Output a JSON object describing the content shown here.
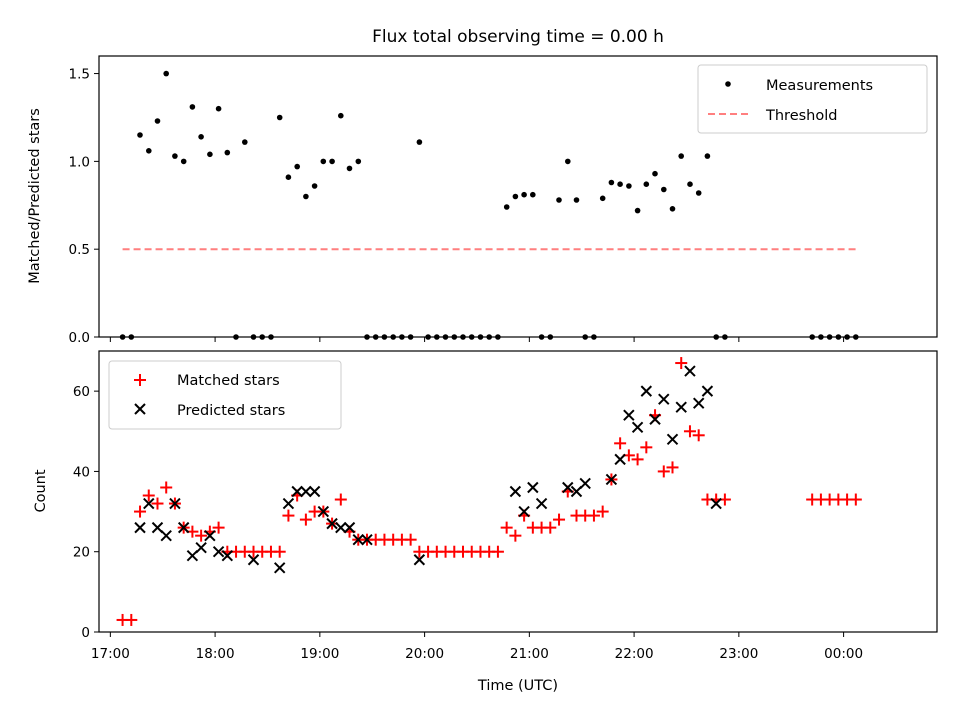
{
  "chart_data": [
    {
      "type": "scatter",
      "title": "Flux total observing time = 0.00 h",
      "xlabel": "",
      "ylabel": "Matched/Predicted stars",
      "ylim": [
        0,
        1.6
      ],
      "yticks": [
        "0.0",
        "0.5",
        "1.0",
        "1.5"
      ],
      "legend": {
        "placement": "top-right",
        "entries": [
          "Measurements",
          "Threshold"
        ]
      },
      "series": [
        {
          "name": "Measurements",
          "marker": "dot",
          "color": "#000000",
          "x": [
            "17:07",
            "17:12",
            "17:17",
            "17:22",
            "17:27",
            "17:32",
            "17:37",
            "17:42",
            "17:47",
            "17:52",
            "17:57",
            "18:02",
            "18:07",
            "18:12",
            "18:17",
            "18:22",
            "18:27",
            "18:32",
            "18:37",
            "18:42",
            "18:47",
            "18:52",
            "18:57",
            "19:02",
            "19:07",
            "19:12",
            "19:17",
            "19:22",
            "19:27",
            "19:32",
            "19:37",
            "19:42",
            "19:47",
            "19:52",
            "19:57",
            "20:02",
            "20:07",
            "20:12",
            "20:17",
            "20:22",
            "20:27",
            "20:32",
            "20:37",
            "20:42",
            "20:47",
            "20:52",
            "20:57",
            "21:02",
            "21:07",
            "21:12",
            "21:17",
            "21:22",
            "21:27",
            "21:32",
            "21:37",
            "21:42",
            "21:47",
            "21:52",
            "21:57",
            "22:02",
            "22:07",
            "22:12",
            "22:17",
            "22:22",
            "22:27",
            "22:32",
            "22:37",
            "22:42",
            "22:47",
            "22:52",
            "23:42",
            "23:47",
            "23:52",
            "23:57",
            "00:02",
            "00:07"
          ],
          "y": [
            0,
            0,
            1.15,
            1.06,
            1.23,
            1.5,
            1.03,
            1.0,
            1.31,
            1.14,
            1.04,
            1.3,
            1.05,
            0,
            1.11,
            0,
            0,
            0,
            1.25,
            0.91,
            0.97,
            0.8,
            0.86,
            1.0,
            1.0,
            1.26,
            0.96,
            1.0,
            0,
            0,
            0,
            0,
            0,
            0,
            1.11,
            0,
            0,
            0,
            0,
            0,
            0,
            0,
            0,
            0,
            0.74,
            0.8,
            0.81,
            0.81,
            0,
            0,
            0.78,
            1.0,
            0.78,
            0,
            0,
            0.79,
            0.88,
            0.87,
            0.86,
            0.72,
            0.87,
            0.93,
            0.84,
            0.73,
            1.03,
            0.87,
            0.82,
            1.03,
            0,
            0,
            0,
            0,
            0,
            0,
            0,
            0
          ]
        },
        {
          "name": "Threshold",
          "style": "dashed",
          "color": "#ff7f7f",
          "x": [
            "17:07",
            "00:07"
          ],
          "y": [
            0.5,
            0.5
          ]
        }
      ]
    },
    {
      "type": "scatter",
      "title": "",
      "xlabel": "Time (UTC)",
      "ylabel": "Count",
      "ylim": [
        0,
        70
      ],
      "yticks": [
        "0",
        "20",
        "40",
        "60"
      ],
      "xticks": [
        "17:00",
        "18:00",
        "19:00",
        "20:00",
        "21:00",
        "22:00",
        "23:00",
        "00:00"
      ],
      "legend": {
        "placement": "top-left",
        "entries": [
          "Matched stars",
          "Predicted stars"
        ]
      },
      "series": [
        {
          "name": "Matched stars",
          "marker": "plus",
          "color": "#ff0000",
          "x": [
            "17:07",
            "17:12",
            "17:17",
            "17:22",
            "17:27",
            "17:32",
            "17:37",
            "17:42",
            "17:47",
            "17:52",
            "17:57",
            "18:02",
            "18:07",
            "18:12",
            "18:17",
            "18:22",
            "18:27",
            "18:32",
            "18:37",
            "18:42",
            "18:47",
            "18:52",
            "18:57",
            "19:02",
            "19:07",
            "19:12",
            "19:17",
            "19:22",
            "19:27",
            "19:32",
            "19:37",
            "19:42",
            "19:47",
            "19:52",
            "19:57",
            "20:02",
            "20:07",
            "20:12",
            "20:17",
            "20:22",
            "20:27",
            "20:32",
            "20:37",
            "20:42",
            "20:47",
            "20:52",
            "20:57",
            "21:02",
            "21:07",
            "21:12",
            "21:17",
            "21:22",
            "21:27",
            "21:32",
            "21:37",
            "21:42",
            "21:47",
            "21:52",
            "21:57",
            "22:02",
            "22:07",
            "22:12",
            "22:17",
            "22:22",
            "22:27",
            "22:32",
            "22:37",
            "22:42",
            "22:47",
            "22:52",
            "23:42",
            "23:47",
            "23:52",
            "23:57",
            "00:02",
            "00:07"
          ],
          "y": [
            3,
            3,
            30,
            34,
            32,
            36,
            32,
            26,
            25,
            24,
            25,
            26,
            20,
            20,
            20,
            20,
            20,
            20,
            20,
            29,
            34,
            28,
            30,
            30,
            27,
            33,
            25,
            23,
            23,
            23,
            23,
            23,
            23,
            23,
            20,
            20,
            20,
            20,
            20,
            20,
            20,
            20,
            20,
            20,
            26,
            24,
            29,
            26,
            26,
            26,
            28,
            35,
            29,
            29,
            29,
            30,
            38,
            47,
            44,
            43,
            46,
            54,
            40,
            41,
            67,
            50,
            49,
            33,
            33,
            33,
            33,
            33,
            33,
            33,
            33,
            33
          ]
        },
        {
          "name": "Predicted stars",
          "marker": "x",
          "color": "#000000",
          "x": [
            "17:17",
            "17:22",
            "17:27",
            "17:32",
            "17:37",
            "17:42",
            "17:47",
            "17:52",
            "17:57",
            "18:02",
            "18:07",
            "18:22",
            "18:37",
            "18:42",
            "18:47",
            "18:52",
            "18:57",
            "19:02",
            "19:07",
            "19:12",
            "19:17",
            "19:22",
            "19:27",
            "19:57",
            "20:52",
            "20:57",
            "21:02",
            "21:07",
            "21:22",
            "21:27",
            "21:32",
            "21:47",
            "21:52",
            "21:57",
            "22:02",
            "22:07",
            "22:12",
            "22:17",
            "22:22",
            "22:27",
            "22:32",
            "22:37",
            "22:42",
            "22:47"
          ],
          "y": [
            26,
            32,
            26,
            24,
            32,
            26,
            19,
            21,
            24,
            20,
            19,
            18,
            16,
            32,
            35,
            35,
            35,
            30,
            27,
            26,
            26,
            23,
            23,
            18,
            35,
            30,
            36,
            32,
            36,
            35,
            37,
            38,
            43,
            54,
            51,
            60,
            53,
            58,
            48,
            56,
            65,
            57,
            60,
            32
          ]
        }
      ]
    }
  ]
}
